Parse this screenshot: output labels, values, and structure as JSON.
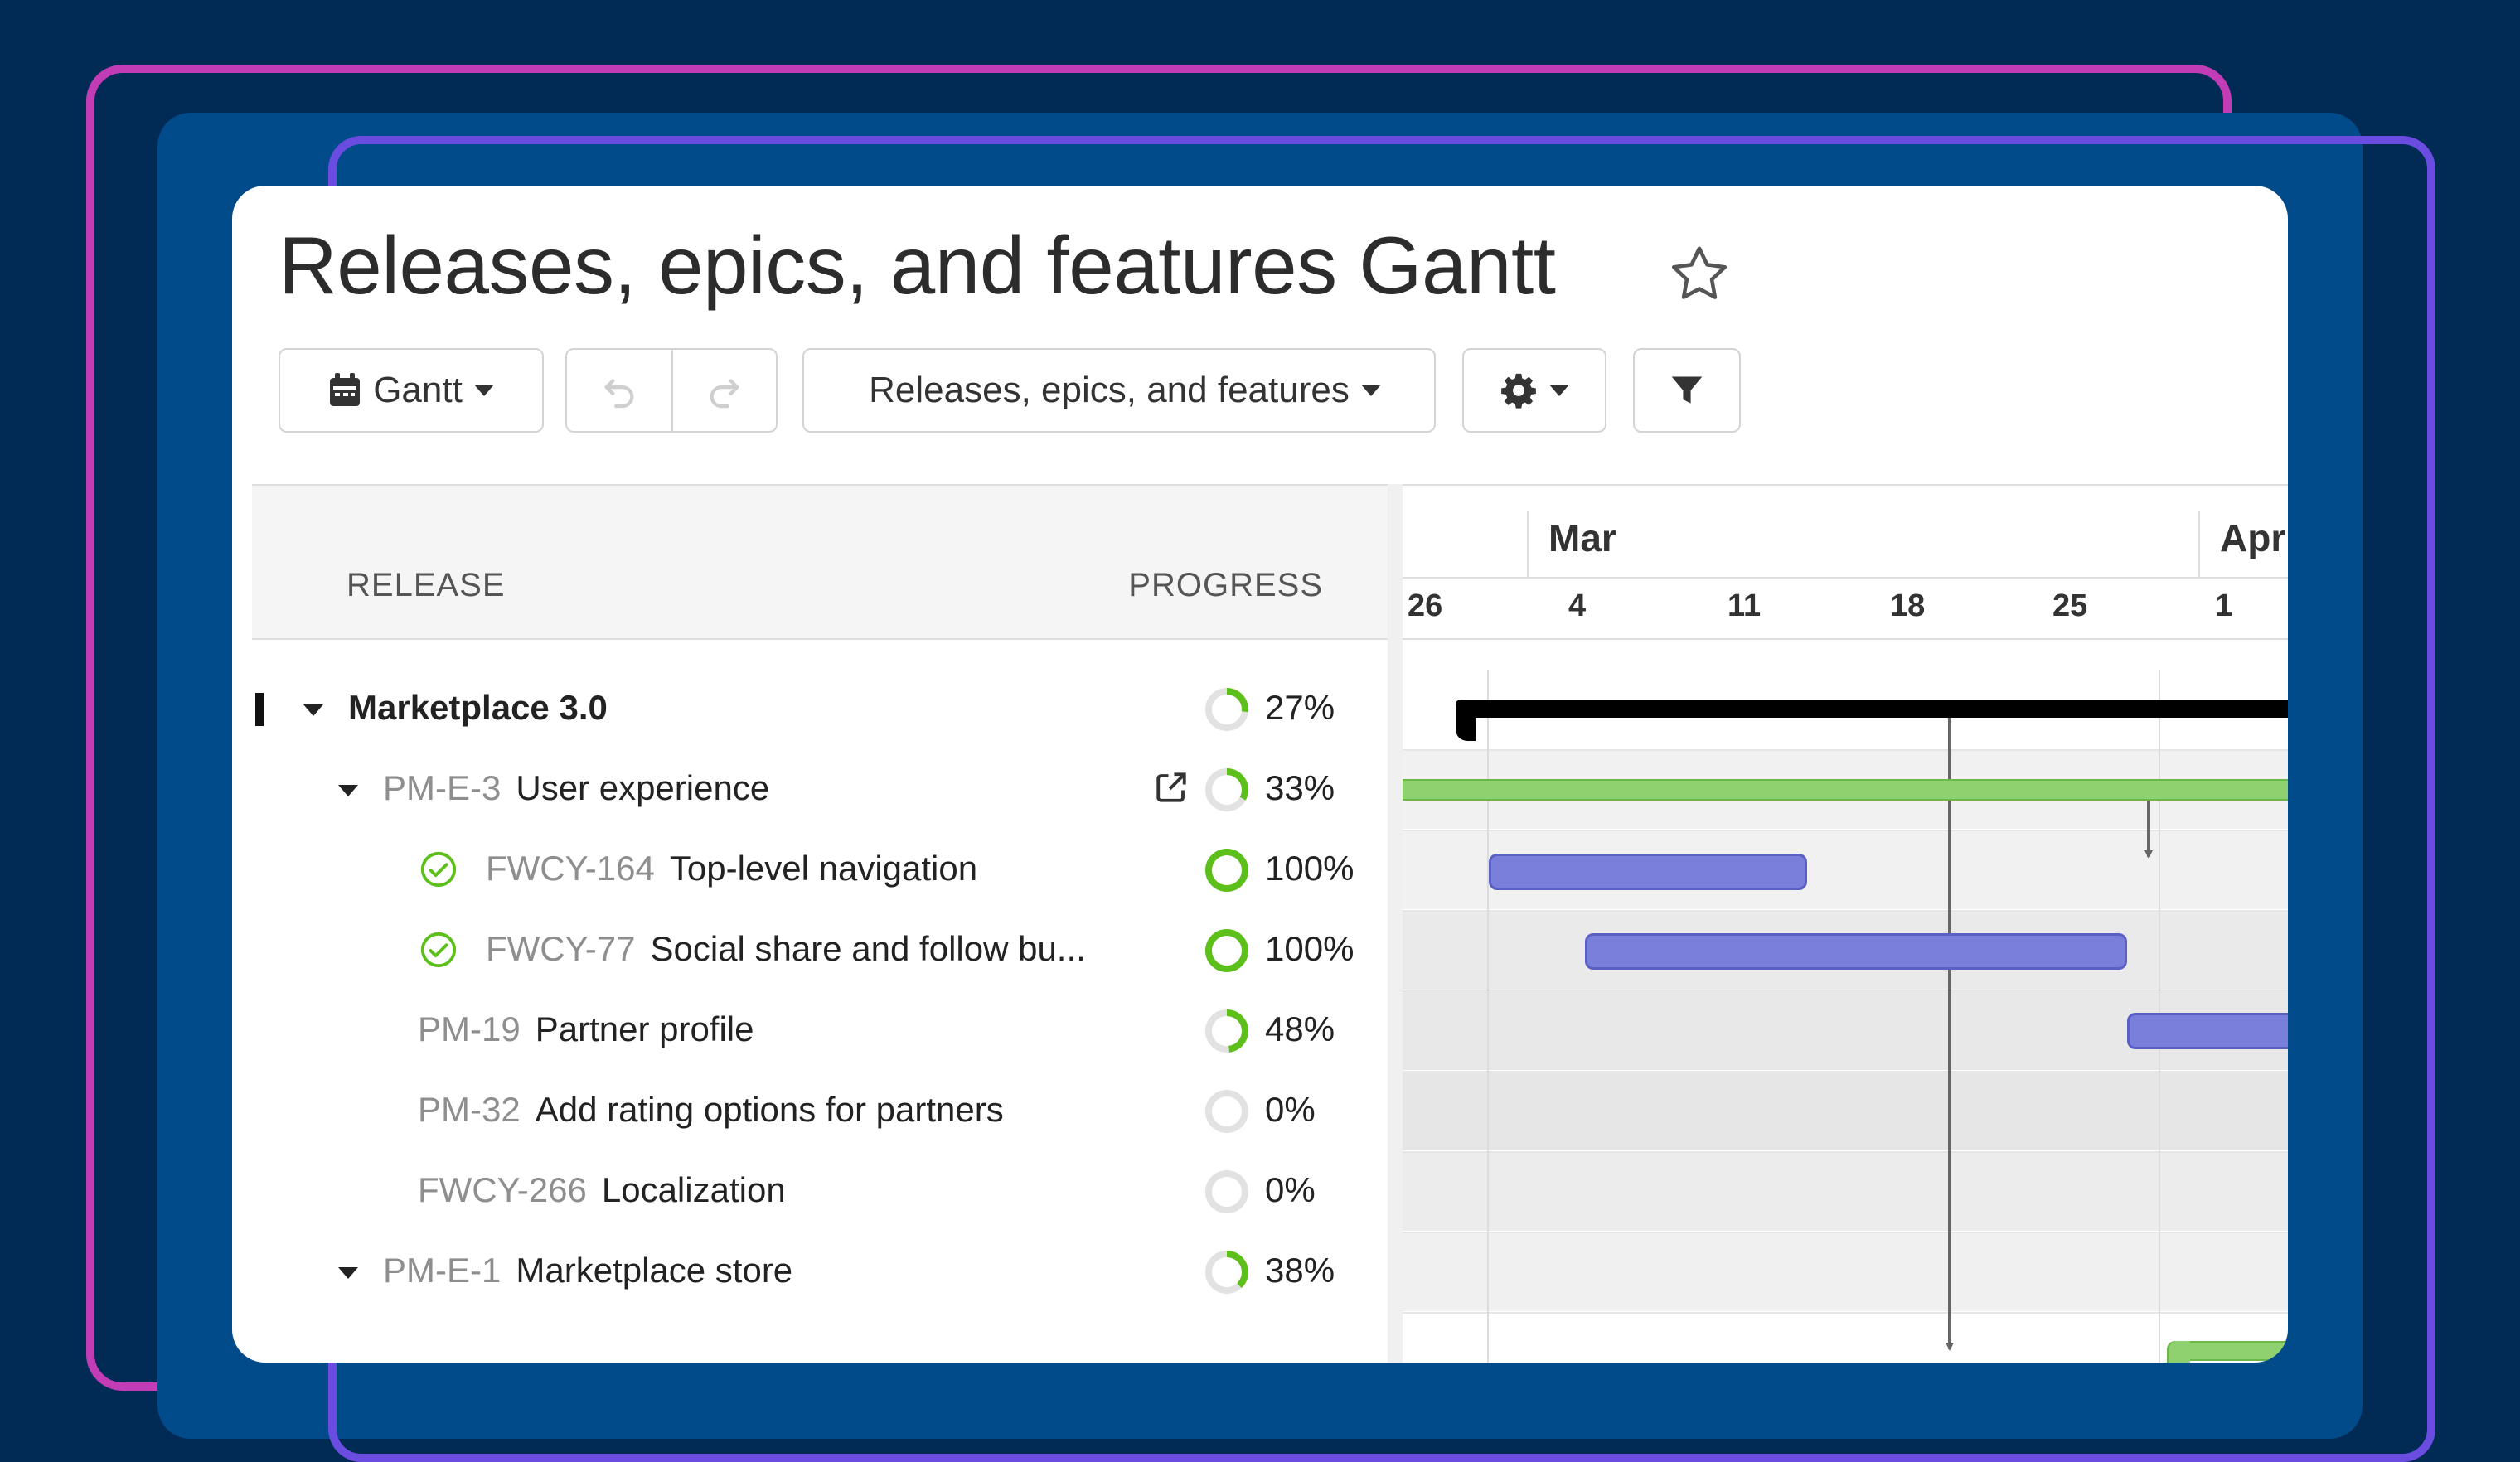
{
  "header": {
    "title": "Releases, epics, and features Gantt"
  },
  "toolbar": {
    "view_label": "Gantt",
    "preset_label": "Releases, epics, and features"
  },
  "columns": {
    "release": "RELEASE",
    "progress": "PROGRESS"
  },
  "timeline": {
    "months": [
      "Mar",
      "Apr"
    ],
    "days": [
      "26",
      "4",
      "11",
      "18",
      "25",
      "1"
    ]
  },
  "rows": [
    {
      "kind": "release",
      "id": "",
      "name": "Marketplace 3.0",
      "progress": 27,
      "progress_label": "27%"
    },
    {
      "kind": "epic",
      "id": "PM-E-3",
      "name": "User experience",
      "progress": 33,
      "progress_label": "33%"
    },
    {
      "kind": "feature",
      "id": "FWCY-164",
      "name": "Top-level navigation",
      "progress": 100,
      "progress_label": "100%",
      "done": true
    },
    {
      "kind": "feature",
      "id": "FWCY-77",
      "name": "Social share and follow bu...",
      "progress": 100,
      "progress_label": "100%",
      "done": true
    },
    {
      "kind": "feature",
      "id": "PM-19",
      "name": "Partner profile",
      "progress": 48,
      "progress_label": "48%"
    },
    {
      "kind": "feature",
      "id": "PM-32",
      "name": "Add rating options for partners",
      "progress": 0,
      "progress_label": "0%"
    },
    {
      "kind": "feature",
      "id": "FWCY-266",
      "name": "Localization",
      "progress": 0,
      "progress_label": "0%"
    },
    {
      "kind": "epic",
      "id": "PM-E-1",
      "name": "Marketplace store",
      "progress": 38,
      "progress_label": "38%"
    }
  ],
  "colors": {
    "release_bar": "#000000",
    "epic_bar": "#8fd16f",
    "feature_bar": "#7b7fdc",
    "progress_ring": "#5cbf1a",
    "ring_track": "#e2e2e2"
  }
}
